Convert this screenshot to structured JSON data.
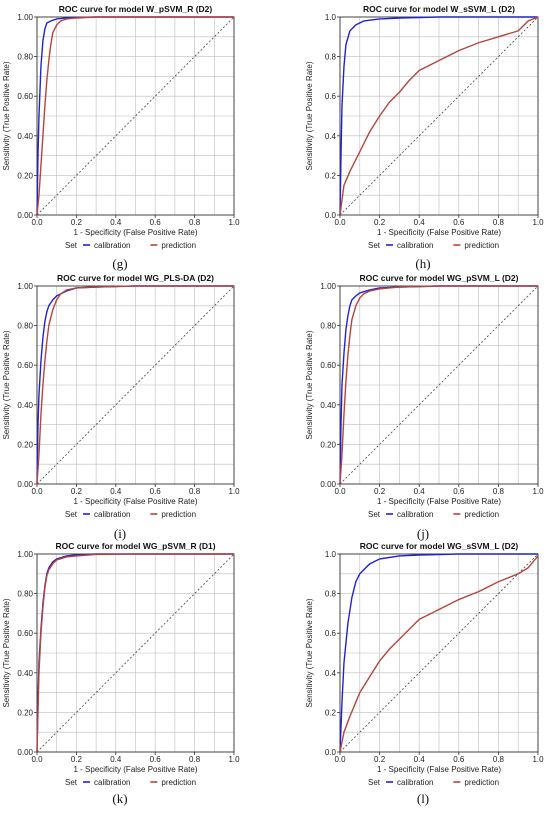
{
  "legend": {
    "title": "Set",
    "items": [
      {
        "name": "calibration",
        "color": "#2222cc"
      },
      {
        "name": "prediction",
        "color": "#b5453a"
      }
    ]
  },
  "chart_data": [
    {
      "type": "line",
      "panel_label": "",
      "title": "ROC curve for model W_pSVM_R (D2)",
      "xlabel": "1 - Specificity (False Positive Rate)",
      "ylabel": "Sensitivity (True Positive Rate)",
      "xlim": [
        0,
        1
      ],
      "ylim": [
        0,
        1
      ],
      "xticks": [
        "0.0",
        "0.2",
        "0.4",
        "0.6",
        "0.8",
        "1.0"
      ],
      "yticks": [
        "0.00",
        "0.20",
        "0.40",
        "0.60",
        "0.80",
        "1.00"
      ],
      "grid": true,
      "reference_line": "diagonal",
      "series": [
        {
          "name": "calibration",
          "x": [
            0,
            0.005,
            0.01,
            0.02,
            0.03,
            0.04,
            0.05,
            0.07,
            0.1,
            0.15,
            0.2,
            0.3,
            1.0
          ],
          "y": [
            0,
            0.3,
            0.5,
            0.75,
            0.88,
            0.94,
            0.97,
            0.98,
            0.99,
            0.995,
            0.998,
            1.0,
            1.0
          ]
        },
        {
          "name": "prediction",
          "x": [
            0,
            0.01,
            0.02,
            0.03,
            0.04,
            0.05,
            0.06,
            0.07,
            0.08,
            0.1,
            0.12,
            0.15,
            0.2,
            0.3,
            0.5,
            1.0
          ],
          "y": [
            0,
            0.1,
            0.25,
            0.4,
            0.55,
            0.68,
            0.78,
            0.86,
            0.92,
            0.96,
            0.98,
            0.99,
            0.995,
            1.0,
            1.0,
            1.0
          ]
        }
      ]
    },
    {
      "type": "line",
      "panel_label": "",
      "title": "ROC curve for model W_sSVM_L (D2)",
      "xlabel": "1 - Specificity (False Positive Rate)",
      "ylabel": "Sensitivity (True Positive Rate)",
      "xlim": [
        0,
        1
      ],
      "ylim": [
        0,
        1
      ],
      "xticks": [
        "0.0",
        "0.2",
        "0.4",
        "0.6",
        "0.8",
        "1.0"
      ],
      "yticks": [
        "0.0",
        "0.2",
        "0.4",
        "0.6",
        "0.8",
        "1.0"
      ],
      "grid": true,
      "reference_line": "diagonal",
      "series": [
        {
          "name": "calibration",
          "x": [
            0,
            0.005,
            0.01,
            0.02,
            0.03,
            0.05,
            0.08,
            0.12,
            0.2,
            0.3,
            0.5,
            1.0
          ],
          "y": [
            0,
            0.3,
            0.55,
            0.75,
            0.86,
            0.93,
            0.96,
            0.98,
            0.99,
            0.995,
            1.0,
            1.0
          ]
        },
        {
          "name": "prediction",
          "x": [
            0,
            0.02,
            0.05,
            0.1,
            0.15,
            0.2,
            0.25,
            0.3,
            0.35,
            0.4,
            0.5,
            0.6,
            0.7,
            0.8,
            0.9,
            0.95,
            1.0
          ],
          "y": [
            0,
            0.15,
            0.22,
            0.32,
            0.42,
            0.5,
            0.57,
            0.62,
            0.68,
            0.73,
            0.78,
            0.83,
            0.87,
            0.9,
            0.93,
            0.98,
            1.0
          ]
        }
      ]
    },
    {
      "type": "line",
      "panel_label": "(g)",
      "title": "ROC curve for model WG_PLS-DA (D2)",
      "xlabel": "1 - Specificity (False Positive Rate)",
      "ylabel": "Sensitivity (True Positive Rate)",
      "xlim": [
        0,
        1
      ],
      "ylim": [
        0,
        1
      ],
      "xticks": [
        "0.0",
        "0.2",
        "0.4",
        "0.6",
        "0.8",
        "1.0"
      ],
      "yticks": [
        "0.00",
        "0.20",
        "0.40",
        "0.60",
        "0.80",
        "1.00"
      ],
      "grid": true,
      "reference_line": "diagonal",
      "series": [
        {
          "name": "calibration",
          "x": [
            0,
            0.005,
            0.01,
            0.02,
            0.03,
            0.04,
            0.05,
            0.06,
            0.08,
            0.1,
            0.15,
            0.2,
            0.3,
            0.5,
            1.0
          ],
          "y": [
            0,
            0.3,
            0.45,
            0.62,
            0.74,
            0.82,
            0.87,
            0.9,
            0.93,
            0.95,
            0.975,
            0.99,
            0.995,
            1.0,
            1.0
          ]
        },
        {
          "name": "prediction",
          "x": [
            0,
            0.01,
            0.02,
            0.03,
            0.04,
            0.05,
            0.06,
            0.08,
            0.1,
            0.12,
            0.15,
            0.2,
            0.3,
            0.5,
            1.0
          ],
          "y": [
            0,
            0.15,
            0.35,
            0.5,
            0.62,
            0.72,
            0.8,
            0.88,
            0.93,
            0.96,
            0.98,
            0.99,
            0.995,
            1.0,
            1.0
          ]
        }
      ]
    },
    {
      "type": "line",
      "panel_label": "(h)",
      "title": "ROC curve for model WG_pSVM_L (D2)",
      "xlabel": "1 - Specificity (False Positive Rate)",
      "ylabel": "Sensitivity (True Positive Rate)",
      "xlim": [
        0,
        1
      ],
      "ylim": [
        0,
        1
      ],
      "xticks": [
        "0.0",
        "0.2",
        "0.4",
        "0.6",
        "0.8",
        "1.0"
      ],
      "yticks": [
        "0.00",
        "0.20",
        "0.40",
        "0.60",
        "0.80",
        "1.00"
      ],
      "grid": true,
      "reference_line": "diagonal",
      "series": [
        {
          "name": "calibration",
          "x": [
            0,
            0.005,
            0.01,
            0.02,
            0.03,
            0.04,
            0.05,
            0.06,
            0.08,
            0.1,
            0.15,
            0.2,
            0.3,
            0.5,
            1.0
          ],
          "y": [
            0,
            0.3,
            0.5,
            0.66,
            0.78,
            0.85,
            0.9,
            0.93,
            0.95,
            0.965,
            0.98,
            0.99,
            0.995,
            1.0,
            1.0
          ]
        },
        {
          "name": "prediction",
          "x": [
            0,
            0.01,
            0.02,
            0.03,
            0.04,
            0.05,
            0.06,
            0.08,
            0.1,
            0.12,
            0.15,
            0.2,
            0.3,
            0.5,
            1.0
          ],
          "y": [
            0,
            0.15,
            0.35,
            0.52,
            0.65,
            0.75,
            0.83,
            0.9,
            0.94,
            0.96,
            0.975,
            0.985,
            0.995,
            1.0,
            1.0
          ]
        }
      ]
    },
    {
      "type": "line",
      "panel_label": "(i)",
      "title": "ROC curve for model WG_pSVM_R (D1)",
      "xlabel": "1 - Specificity (False Positive Rate)",
      "ylabel": "Sensitivity (True Positive Rate)",
      "xlim": [
        0,
        1
      ],
      "ylim": [
        0,
        1
      ],
      "xticks": [
        "0.0",
        "0.2",
        "0.4",
        "0.6",
        "0.8",
        "1.0"
      ],
      "yticks": [
        "0.00",
        "0.20",
        "0.40",
        "0.60",
        "0.80",
        "1.00"
      ],
      "grid": true,
      "reference_line": "diagonal",
      "series": [
        {
          "name": "calibration",
          "x": [
            0,
            0.005,
            0.01,
            0.02,
            0.03,
            0.04,
            0.05,
            0.06,
            0.08,
            0.1,
            0.15,
            0.2,
            0.3,
            0.5,
            1.0
          ],
          "y": [
            0,
            0.25,
            0.45,
            0.62,
            0.75,
            0.84,
            0.9,
            0.93,
            0.96,
            0.975,
            0.99,
            0.995,
            1.0,
            1.0,
            1.0
          ]
        },
        {
          "name": "prediction",
          "x": [
            0,
            0.005,
            0.01,
            0.02,
            0.03,
            0.04,
            0.05,
            0.06,
            0.08,
            0.1,
            0.15,
            0.2,
            0.3,
            0.5,
            1.0
          ],
          "y": [
            0,
            0.2,
            0.4,
            0.6,
            0.73,
            0.83,
            0.89,
            0.92,
            0.95,
            0.97,
            0.985,
            0.99,
            0.998,
            1.0,
            1.0
          ]
        }
      ]
    },
    {
      "type": "line",
      "panel_label": "(j)",
      "title": "ROC curve for model WG_sSVM_L (D2)",
      "xlabel": "1 - Specificity (False Positive Rate)",
      "ylabel": "Sensitivity (True Positive Rate)",
      "xlim": [
        0,
        1
      ],
      "ylim": [
        0,
        1
      ],
      "xticks": [
        "0.0",
        "0.2",
        "0.4",
        "0.6",
        "0.8",
        "1.0"
      ],
      "yticks": [
        "0.0",
        "0.2",
        "0.4",
        "0.6",
        "0.8",
        "1.0"
      ],
      "grid": true,
      "reference_line": "diagonal",
      "series": [
        {
          "name": "calibration",
          "x": [
            0,
            0.01,
            0.02,
            0.04,
            0.06,
            0.08,
            0.1,
            0.15,
            0.2,
            0.3,
            0.4,
            0.6,
            1.0
          ],
          "y": [
            0,
            0.25,
            0.45,
            0.65,
            0.78,
            0.86,
            0.9,
            0.95,
            0.975,
            0.99,
            0.995,
            1.0,
            1.0
          ]
        },
        {
          "name": "prediction",
          "x": [
            0,
            0.02,
            0.05,
            0.1,
            0.15,
            0.2,
            0.25,
            0.3,
            0.35,
            0.4,
            0.5,
            0.6,
            0.7,
            0.8,
            0.9,
            0.95,
            1.0
          ],
          "y": [
            0,
            0.1,
            0.18,
            0.3,
            0.38,
            0.46,
            0.52,
            0.57,
            0.62,
            0.67,
            0.72,
            0.77,
            0.81,
            0.86,
            0.9,
            0.93,
            0.99
          ]
        }
      ]
    }
  ],
  "footer_labels": [
    "(k)",
    "(l)"
  ]
}
